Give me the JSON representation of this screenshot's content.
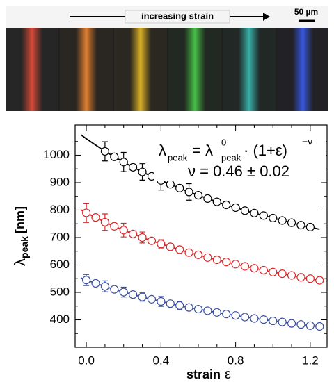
{
  "top_panel": {
    "arrow_label": "increasing strain",
    "scale_bar": "50 µm"
  },
  "chart_data": {
    "type": "scatter",
    "ylabel": [
      "λ",
      "peak",
      "[nm]"
    ],
    "xlabel": [
      "strain",
      "ε"
    ],
    "equation": [
      "λ",
      "peak",
      "= λ",
      "0",
      "peak",
      "·  (1+ε)",
      "−ν"
    ],
    "nu_line": "ν = 0.46 ± 0.02",
    "xlim": [
      -0.06,
      1.29
    ],
    "ylim": [
      300,
      1110
    ],
    "xticks": [
      {
        "value": 0,
        "label": "0.0"
      },
      0.4,
      0.8,
      1.2
    ],
    "yticks": [
      400,
      500,
      600,
      700,
      800,
      900,
      1000
    ],
    "xminorticks": [
      0.1,
      0.2,
      0.3,
      0.5,
      0.6,
      0.7,
      0.9,
      1.0,
      1.1
    ],
    "yminorticks": [
      350,
      450,
      550,
      650,
      750,
      850,
      950,
      1050
    ],
    "series": [
      {
        "color": "#000000",
        "x": [
          0.1,
          0.15,
          0.2,
          0.25,
          0.3,
          0.35,
          0.4,
          0.45,
          0.5,
          0.55,
          0.6,
          0.65,
          0.7,
          0.75,
          0.8,
          0.85,
          0.9,
          0.95,
          1.0,
          1.05,
          1.1,
          1.15,
          1.2
        ],
        "values": [
          1014,
          994,
          975,
          956,
          939,
          923,
          908,
          894,
          880,
          866,
          854,
          842,
          830,
          819,
          809,
          798,
          789,
          780,
          771,
          762,
          754,
          745,
          738
        ],
        "errors": [
          35,
          null,
          35,
          null,
          30,
          null,
          35,
          null,
          null,
          30,
          null,
          null,
          null,
          null,
          null,
          null,
          null,
          null,
          null,
          null,
          null,
          null,
          null
        ]
      },
      {
        "color": "#d8282a",
        "x": [
          0,
          0.05,
          0.1,
          0.15,
          0.2,
          0.25,
          0.3,
          0.35,
          0.4,
          0.45,
          0.5,
          0.55,
          0.6,
          0.65,
          0.7,
          0.75,
          0.8,
          0.85,
          0.9,
          0.95,
          1.0,
          1.05,
          1.1,
          1.15,
          1.2,
          1.25
        ],
        "values": [
          790,
          773,
          756,
          741,
          727,
          713,
          700,
          688,
          677,
          666,
          656,
          645,
          637,
          627,
          619,
          611,
          603,
          595,
          588,
          581,
          574,
          568,
          562,
          555,
          550,
          544
        ],
        "errors": [
          35,
          null,
          30,
          null,
          25,
          null,
          20,
          null,
          15,
          null,
          12,
          null,
          null,
          null,
          null,
          null,
          null,
          null,
          null,
          null,
          null,
          null,
          null,
          null,
          null,
          null
        ]
      },
      {
        "color": "#3a4fa0",
        "x": [
          0,
          0.05,
          0.1,
          0.15,
          0.2,
          0.25,
          0.3,
          0.35,
          0.4,
          0.45,
          0.5,
          0.55,
          0.6,
          0.65,
          0.7,
          0.75,
          0.8,
          0.85,
          0.9,
          0.95,
          1.0,
          1.05,
          1.1,
          1.15,
          1.2,
          1.25
        ],
        "values": [
          545,
          533,
          522,
          511,
          501,
          492,
          483,
          475,
          467,
          459,
          452,
          445,
          439,
          433,
          427,
          421,
          416,
          410,
          405,
          401,
          396,
          392,
          387,
          383,
          379,
          376
        ],
        "errors": [
          20,
          null,
          20,
          null,
          18,
          null,
          15,
          null,
          18,
          null,
          15,
          null,
          null,
          null,
          null,
          null,
          null,
          null,
          null,
          null,
          null,
          null,
          null,
          null,
          null,
          null
        ]
      }
    ],
    "fits": [
      {
        "color": "#000000",
        "x": [
          -0.03,
          0,
          0.05,
          0.1,
          0.15,
          0.2,
          0.25,
          0.3,
          0.35,
          0.4,
          0.45,
          0.5,
          0.55,
          0.6,
          0.65,
          0.7,
          0.75,
          0.8,
          0.85,
          0.9,
          0.95,
          1.0,
          1.05,
          1.1,
          1.15,
          1.2,
          1.25
        ],
        "values": [
          1075,
          1060,
          1037,
          1014,
          994,
          975,
          956,
          939,
          923,
          908,
          894,
          880,
          866,
          854,
          842,
          830,
          819,
          809,
          798,
          789,
          780,
          771,
          762,
          754,
          745,
          738,
          730
        ]
      },
      {
        "color": "#d8282a",
        "x": [
          -0.03,
          0,
          0.05,
          0.1,
          0.15,
          0.2,
          0.25,
          0.3,
          0.35,
          0.4,
          0.45,
          0.5,
          0.55,
          0.6,
          0.65,
          0.7,
          0.75,
          0.8,
          0.85,
          0.9,
          0.95,
          1.0,
          1.05,
          1.1,
          1.15,
          1.2,
          1.25
        ],
        "values": [
          801,
          790,
          773,
          756,
          741,
          727,
          713,
          700,
          688,
          677,
          666,
          656,
          645,
          637,
          627,
          619,
          611,
          603,
          595,
          588,
          581,
          574,
          568,
          562,
          555,
          550,
          544
        ]
      },
      {
        "color": "#3a4fa0",
        "x": [
          -0.03,
          0,
          0.05,
          0.1,
          0.15,
          0.2,
          0.25,
          0.3,
          0.35,
          0.4,
          0.45,
          0.5,
          0.55,
          0.6,
          0.65,
          0.7,
          0.75,
          0.8,
          0.85,
          0.9,
          0.95,
          1.0,
          1.05,
          1.1,
          1.15,
          1.2,
          1.25
        ],
        "values": [
          553,
          545,
          533,
          522,
          511,
          501,
          492,
          483,
          475,
          467,
          459,
          452,
          445,
          439,
          433,
          427,
          421,
          416,
          410,
          405,
          401,
          396,
          392,
          387,
          383,
          379,
          376
        ]
      }
    ]
  }
}
